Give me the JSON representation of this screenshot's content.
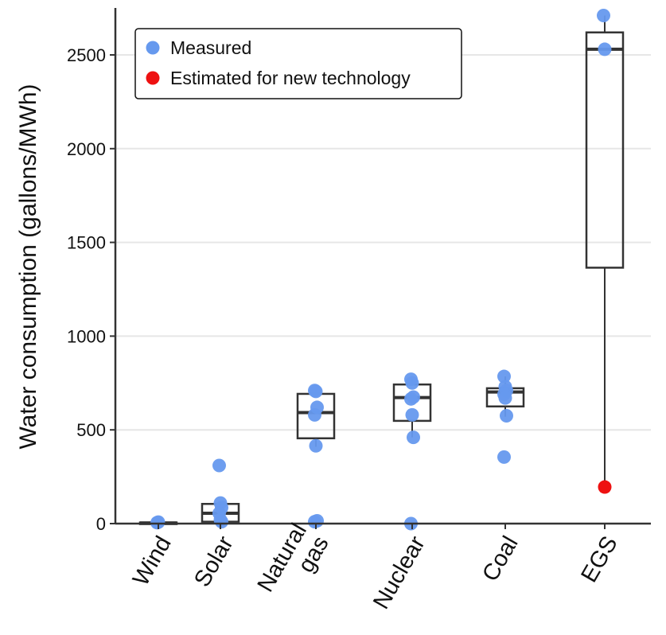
{
  "chart_data": {
    "type": "box",
    "ylabel": "Water consumption (gallons/MWh)",
    "xlabel": "",
    "ylim": [
      0,
      2750
    ],
    "yticks": [
      0,
      500,
      1000,
      1500,
      2000,
      2500
    ],
    "grid": "horizontal",
    "legend_position": "top-left",
    "colors": {
      "measured": "#6699EE",
      "estimated": "#EE1111",
      "box": "#333333",
      "grid": "#E6E6E6"
    },
    "legend": [
      {
        "key": "measured",
        "label": "Measured"
      },
      {
        "key": "estimated",
        "label": "Estimated for new technology"
      }
    ],
    "categories": [
      {
        "label": [
          "Wind"
        ],
        "box": {
          "q1": 0,
          "median": 3,
          "q3": 6,
          "whisker_low": 0,
          "whisker_high": 8
        },
        "measured": [
          5,
          8
        ],
        "estimated": []
      },
      {
        "label": [
          "Solar"
        ],
        "box": {
          "q1": 10,
          "median": 55,
          "q3": 105,
          "whisker_low": 0,
          "whisker_high": 112
        },
        "measured": [
          310,
          110,
          85,
          55,
          20,
          10
        ],
        "estimated": []
      },
      {
        "label": [
          "Natural",
          "gas"
        ],
        "box": {
          "q1": 455,
          "median": 592,
          "q3": 692,
          "whisker_low": 410,
          "whisker_high": 710
        },
        "measured": [
          710,
          705,
          620,
          580,
          415,
          15,
          10
        ],
        "estimated": []
      },
      {
        "label": [
          "Nuclear"
        ],
        "box": {
          "q1": 548,
          "median": 672,
          "q3": 742,
          "whisker_low": 460,
          "whisker_high": 772
        },
        "measured": [
          770,
          750,
          675,
          665,
          580,
          460,
          0
        ],
        "estimated": []
      },
      {
        "label": [
          "Coal"
        ],
        "box": {
          "q1": 625,
          "median": 702,
          "q3": 722,
          "whisker_low": 570,
          "whisker_high": 785
        },
        "measured": [
          785,
          730,
          710,
          690,
          670,
          575,
          355
        ],
        "estimated": []
      },
      {
        "label": [
          "EGS"
        ],
        "box": {
          "q1": 1365,
          "median": 2530,
          "q3": 2620,
          "whisker_low": 195,
          "whisker_high": 2710
        },
        "measured": [
          2710,
          2530
        ],
        "estimated": [
          195
        ]
      }
    ]
  }
}
